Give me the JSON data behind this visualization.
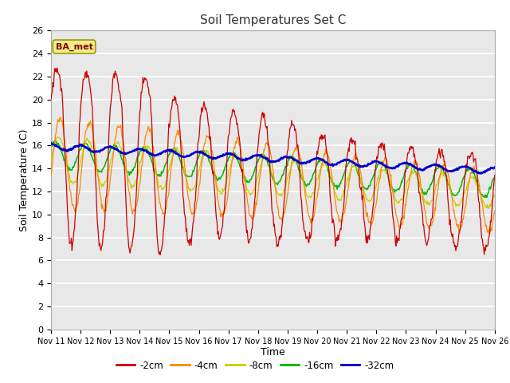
{
  "title": "Soil Temperatures Set C",
  "xlabel": "Time",
  "ylabel": "Soil Temperature (C)",
  "ylim": [
    0,
    26
  ],
  "yticks": [
    0,
    2,
    4,
    6,
    8,
    10,
    12,
    14,
    16,
    18,
    20,
    22,
    24,
    26
  ],
  "series_colors": {
    "-2cm": "#cc0000",
    "-4cm": "#ff8800",
    "-8cm": "#cccc00",
    "-16cm": "#00bb00",
    "-32cm": "#0000cc"
  },
  "x_tick_labels": [
    "Nov 11",
    "Nov 12",
    "Nov 13",
    "Nov 14",
    "Nov 15",
    "Nov 16",
    "Nov 17",
    "Nov 18",
    "Nov 19",
    "Nov 20",
    "Nov 21",
    "Nov 22",
    "Nov 23",
    "Nov 24",
    "Nov 25",
    "Nov 26"
  ],
  "annotation_text": "BA_met",
  "annotation_color": "#880000",
  "annotation_bg": "#eeee88",
  "plot_bg_color": "#e8e8e8",
  "fig_bg_color": "#ffffff",
  "n_days": 15,
  "n_points": 720
}
